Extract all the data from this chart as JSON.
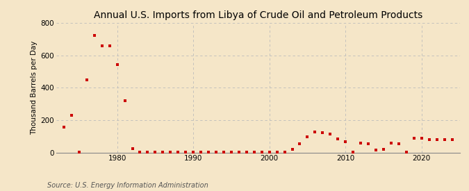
{
  "title": "Annual U.S. Imports from Libya of Crude Oil and Petroleum Products",
  "ylabel": "Thousand Barrels per Day",
  "source": "Source: U.S. Energy Information Administration",
  "background_color": "#f5e6c8",
  "dot_color": "#cc0000",
  "years": [
    1973,
    1974,
    1975,
    1976,
    1977,
    1978,
    1979,
    1980,
    1981,
    1982,
    1983,
    1984,
    1985,
    1986,
    1987,
    1988,
    1989,
    1990,
    1991,
    1992,
    1993,
    1994,
    1995,
    1996,
    1997,
    1998,
    1999,
    2000,
    2001,
    2002,
    2003,
    2004,
    2005,
    2006,
    2007,
    2008,
    2009,
    2010,
    2011,
    2012,
    2013,
    2014,
    2015,
    2016,
    2017,
    2018,
    2019,
    2020,
    2021,
    2022,
    2023,
    2024
  ],
  "values": [
    160,
    230,
    5,
    450,
    725,
    660,
    660,
    545,
    320,
    25,
    5,
    5,
    5,
    5,
    5,
    5,
    5,
    5,
    5,
    5,
    5,
    5,
    5,
    5,
    5,
    5,
    5,
    5,
    5,
    5,
    20,
    55,
    100,
    130,
    125,
    115,
    85,
    70,
    5,
    60,
    55,
    15,
    20,
    60,
    55,
    5,
    90,
    90,
    80,
    80,
    80,
    80
  ],
  "ylim": [
    0,
    800
  ],
  "yticks": [
    0,
    200,
    400,
    600,
    800
  ],
  "xlim": [
    1972,
    2025
  ],
  "xticks": [
    1980,
    1990,
    2000,
    2010,
    2020
  ],
  "grid_color": "#bbbbbb",
  "title_fontsize": 10,
  "label_fontsize": 7.5,
  "tick_fontsize": 7.5,
  "source_fontsize": 7
}
